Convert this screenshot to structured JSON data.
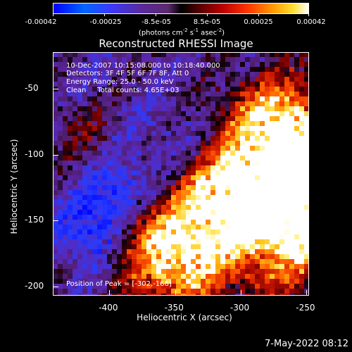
{
  "colorbar": {
    "ticks": [
      "-0.00042",
      "-0.00025",
      "-8.5e-05",
      "8.5e-05",
      "0.00025",
      "0.00042"
    ],
    "tick_values": [
      -0.00042,
      -0.00025,
      -8.5e-05,
      8.5e-05,
      0.00025,
      0.00042
    ],
    "units_prefix": "(photons cm",
    "units_exp1": "-2",
    "units_mid1": " s",
    "units_exp2": "-1",
    "units_mid2": " asec",
    "units_exp3": "-2",
    "units_suffix": ")"
  },
  "annotations": {
    "time": "10-Dec-2007 10:15:08.000 to 10:18:40.000",
    "detectors": "Detectors: 3F 4F 5F 6F 7F 8F, Att 0",
    "energy": "Energy Range: 25.0 - 50.0 keV",
    "clean": "Clean     Total counts: 4.65E+03",
    "peak": "Position of Peak = [-302,-166]"
  },
  "footer": {
    "date": "7-May-2022 08:12"
  },
  "chart_data": {
    "type": "heatmap",
    "title": "Reconstructed RHESSI Image",
    "xlabel": "Heliocentric X (arcsec)",
    "ylabel": "Heliocentric Y (arcsec)",
    "xlim": [
      -443,
      -248
    ],
    "ylim": [
      -207,
      -22
    ],
    "x_ticks": [
      -400,
      -350,
      -300,
      -250
    ],
    "y_ticks": [
      -50,
      -100,
      -150,
      -200
    ],
    "colorbar_range": [
      -0.00042,
      0.00042
    ],
    "peak_position": [
      -302,
      -166
    ],
    "colormap": "blue-purple-black-red-yellow-white"
  }
}
